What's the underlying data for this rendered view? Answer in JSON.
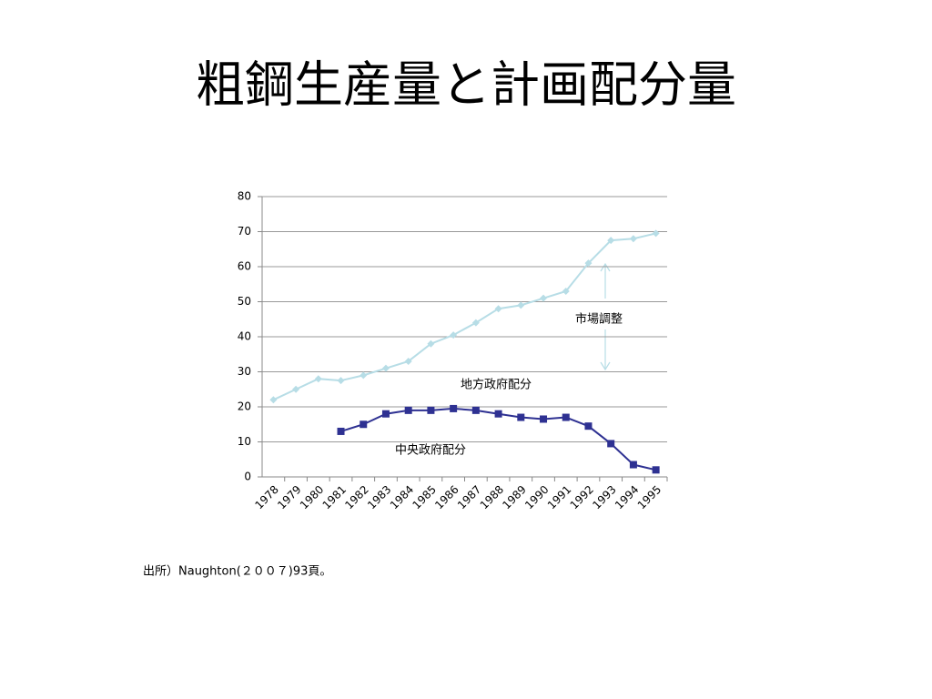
{
  "chart_data": {
    "type": "line",
    "title": "粗鋼生産量と計画配分量",
    "categories": [
      "1978",
      "1979",
      "1980",
      "1981",
      "1982",
      "1983",
      "1984",
      "1985",
      "1986",
      "1987",
      "1988",
      "1989",
      "1990",
      "1991",
      "1992",
      "1993",
      "1994",
      "1995"
    ],
    "series": [
      {
        "color": "#b7dde6",
        "marker": "diamond",
        "values": [
          22,
          25,
          28,
          27.5,
          29,
          31,
          33,
          38,
          40.5,
          44,
          48,
          49,
          51,
          53,
          61,
          67.5,
          68,
          69.5
        ]
      },
      {
        "color": "#2e3192",
        "marker": "square",
        "values": [
          null,
          null,
          null,
          13,
          15,
          18,
          19,
          19,
          19.5,
          19,
          18,
          17,
          16.5,
          17,
          14.5,
          9.5,
          3.5,
          2
        ]
      }
    ],
    "ylim": [
      0,
      80
    ],
    "yticks": [
      0,
      10,
      20,
      30,
      40,
      50,
      60,
      70,
      80
    ],
    "grid": true,
    "annotations": [
      "市場調整",
      "地方政府配分",
      "中央政府配分"
    ],
    "source": "出所）Naughton(２００７)93頁。"
  }
}
